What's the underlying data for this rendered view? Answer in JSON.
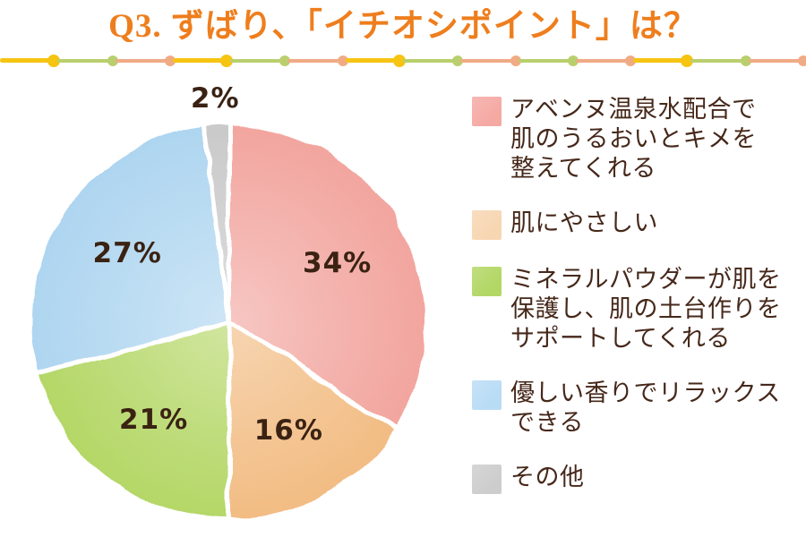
{
  "header": {
    "title": "Q3. ずばり、「イチオシポイント」は？",
    "title_color": "#ee7e1d"
  },
  "divider": {
    "colors": {
      "yellow": "#f6c411",
      "green": "#b9cf6e",
      "salmon": "#f0ab85"
    },
    "pattern": [
      "yellow",
      "green",
      "salmon",
      "yellow",
      "green",
      "salmon",
      "yellow",
      "green",
      "salmon",
      "green",
      "salmon",
      "yellow",
      "green",
      "salmon"
    ]
  },
  "chart_data": {
    "type": "pie",
    "title": "Q3. ずばり、「イチオシポイント」は？",
    "direction": "clockwise",
    "start_angle_deg_from_top": 0,
    "legend_position": "right",
    "label_color": "#3a2213",
    "separator_color": "#ffffff",
    "slices": [
      {
        "label": "アベンヌ温泉水配合で肌のうるおいとキメを整えてくれる",
        "value_pct": 34,
        "display": "34%",
        "color": "#f2a59e"
      },
      {
        "label": "肌にやさしい",
        "value_pct": 16,
        "display": "16%",
        "color": "#f2bc83"
      },
      {
        "label": "ミネラルパウダーが肌を保護し、肌の土台作りをサポートしてくれる",
        "value_pct": 21,
        "display": "21%",
        "color": "#b4d766"
      },
      {
        "label": "優しい香りでリラックスできる",
        "value_pct": 27,
        "display": "27%",
        "color": "#aed5f0"
      },
      {
        "label": "その他",
        "value_pct": 2,
        "display": "2%",
        "color": "#c9c9c9"
      }
    ]
  },
  "legend": {
    "items": [
      {
        "color": "#f5a9a3",
        "lines": [
          "アベンヌ温泉水配合で",
          "肌のうるおいとキメを",
          "整えてくれる"
        ]
      },
      {
        "color": "#f7d6b2",
        "lines": [
          "肌にやさしい"
        ]
      },
      {
        "color": "#b2d765",
        "lines": [
          "ミネラルパウダーが肌を",
          "保護し、肌の土台作りを",
          "サポートしてくれる"
        ]
      },
      {
        "color": "#b9dcf5",
        "lines": [
          "優しい香りでリラックス",
          "できる"
        ]
      },
      {
        "color": "#cdcdcd",
        "lines": [
          "その他"
        ]
      }
    ]
  }
}
